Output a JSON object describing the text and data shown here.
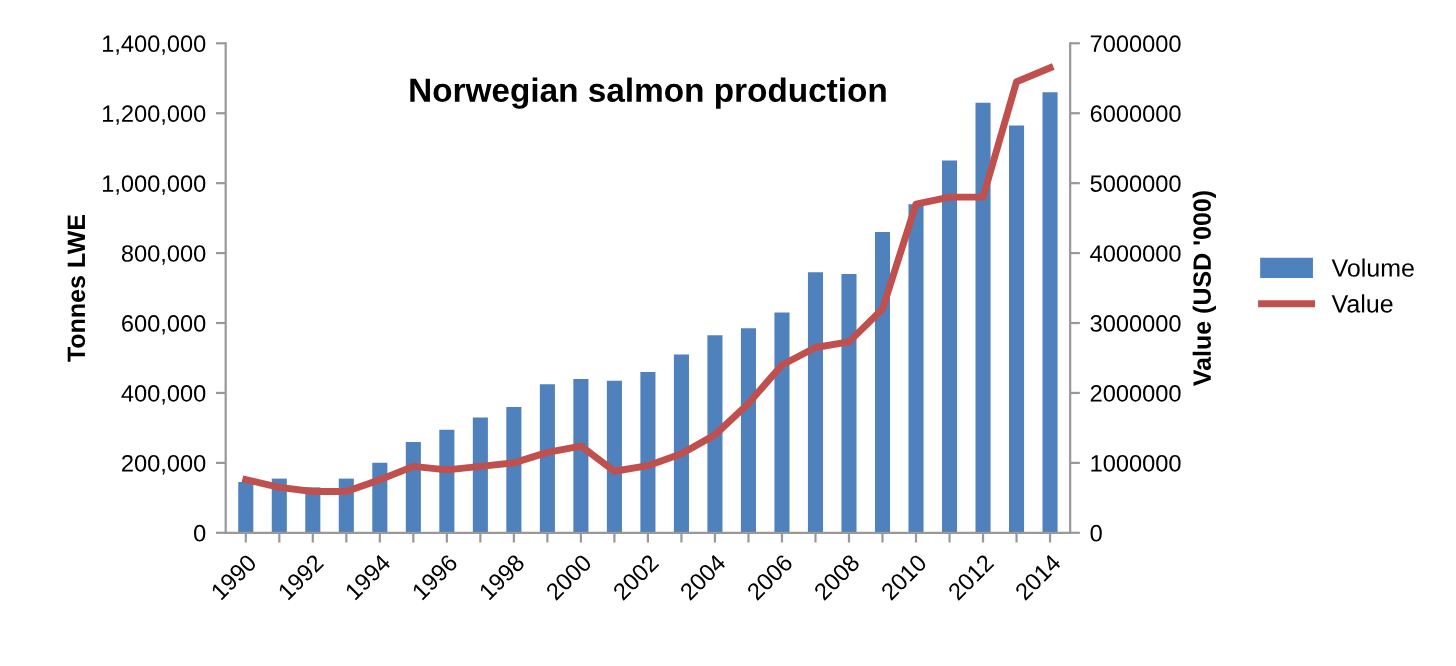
{
  "chart_data": {
    "type": "bar",
    "title": "Norwegian salmon production",
    "ylabel": "Tonnes LWE",
    "y2label": "Value (USD '000)",
    "categories": [
      "1990",
      null,
      "1992",
      null,
      "1994",
      null,
      "1996",
      null,
      "1998",
      null,
      "2000",
      null,
      "2002",
      null,
      "2004",
      null,
      "2006",
      null,
      "2008",
      null,
      "2010",
      null,
      "2012",
      null,
      "2014"
    ],
    "series": [
      {
        "name": "Volume",
        "color": "#4f81bd",
        "values": [
          145000,
          155000,
          130000,
          155000,
          200000,
          260000,
          295000,
          330000,
          360000,
          425000,
          440000,
          435000,
          460000,
          510000,
          565000,
          585000,
          630000,
          745000,
          740000,
          860000,
          940000,
          1065000,
          1230000,
          1165000,
          1260000
        ]
      },
      {
        "name": "Value",
        "type": "line",
        "axis": "y2",
        "color": "#c0504d",
        "values": [
          760000,
          650000,
          590000,
          590000,
          760000,
          950000,
          900000,
          950000,
          1000000,
          1150000,
          1240000,
          880000,
          960000,
          1130000,
          1400000,
          1850000,
          2400000,
          2650000,
          2730000,
          3200000,
          4700000,
          4800000,
          4800000,
          6450000,
          6650000
        ]
      }
    ],
    "ylim": [
      0,
      1400000
    ],
    "yticks": [
      {
        "value": 0,
        "label": "0"
      },
      {
        "value": 200000,
        "label": "200,000"
      },
      {
        "value": 400000,
        "label": "400,000"
      },
      {
        "value": 600000,
        "label": "600,000"
      },
      {
        "value": 800000,
        "label": "800,000"
      },
      {
        "value": 1000000,
        "label": "1,000,000"
      },
      {
        "value": 1200000,
        "label": "1,200,000"
      },
      {
        "value": 1400000,
        "label": "1,400,000"
      }
    ],
    "y2lim": [
      0,
      7000000
    ],
    "y2ticks": [
      0,
      1000000,
      2000000,
      3000000,
      4000000,
      5000000,
      6000000,
      7000000
    ],
    "legend": "right",
    "grid": false,
    "marker": "none",
    "line_style": "solid"
  }
}
